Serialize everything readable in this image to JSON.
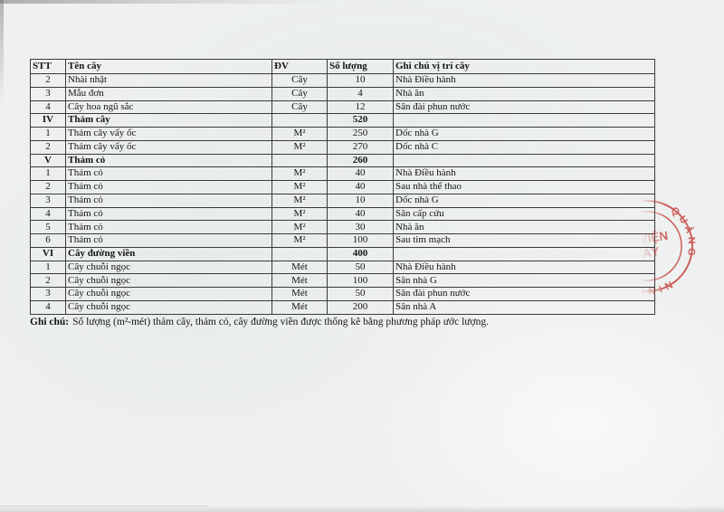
{
  "page": {
    "note_label": "Ghi chú:",
    "note_text": "Số lượng (m²-mét) thảm cây, thảm cỏ, cây đường viền được thống kê bằng phương pháp ước lượng."
  },
  "table": {
    "headers": [
      "STT",
      "Tên cây",
      "ĐV",
      "Số lượng",
      "Ghi chú vị trí cây"
    ],
    "rows": [
      {
        "stt": "2",
        "name": "Nhài nhật",
        "unit": "Cây",
        "qty": "10",
        "note": "Nhà Điều hành",
        "bold": false
      },
      {
        "stt": "3",
        "name": "Mẫu đơn",
        "unit": "Cây",
        "qty": "4",
        "note": "Nhà ăn",
        "bold": false
      },
      {
        "stt": "4",
        "name": "Cây hoa ngũ sắc",
        "unit": "Cây",
        "qty": "12",
        "note": "Sân đài phun nước",
        "bold": false
      },
      {
        "stt": "IV",
        "name": "Thảm cây",
        "unit": "",
        "qty": "520",
        "note": "",
        "bold": true
      },
      {
        "stt": "1",
        "name": "Thảm cây vẩy ốc",
        "unit": "M²",
        "qty": "250",
        "note": "Dốc nhà G",
        "bold": false
      },
      {
        "stt": "2",
        "name": "Thảm cây vẩy ốc",
        "unit": "M²",
        "qty": "270",
        "note": "Dốc nhà C",
        "bold": false
      },
      {
        "stt": "V",
        "name": "Thảm cỏ",
        "unit": "",
        "qty": "260",
        "note": "",
        "bold": true
      },
      {
        "stt": "1",
        "name": "Thảm cỏ",
        "unit": "M²",
        "qty": "40",
        "note": "Nhà Điều hành",
        "bold": false
      },
      {
        "stt": "2",
        "name": "Thảm cỏ",
        "unit": "M²",
        "qty": "40",
        "note": "Sau nhà thể thao",
        "bold": false
      },
      {
        "stt": "3",
        "name": "Thảm cỏ",
        "unit": "M²",
        "qty": "10",
        "note": "Dốc nhà G",
        "bold": false
      },
      {
        "stt": "4",
        "name": "Thảm cỏ",
        "unit": "M²",
        "qty": "40",
        "note": "Sân cấp cứu",
        "bold": false
      },
      {
        "stt": "5",
        "name": "Thảm cỏ",
        "unit": "M²",
        "qty": "30",
        "note": "Nhà ăn",
        "bold": false
      },
      {
        "stt": "6",
        "name": "Thảm cỏ",
        "unit": "M²",
        "qty": "100",
        "note": "Sau tim mạch",
        "bold": false
      },
      {
        "stt": "VI",
        "name": "Cây đường viền",
        "unit": "",
        "qty": "400",
        "note": "",
        "bold": true
      },
      {
        "stt": "1",
        "name": "Cây chuỗi ngọc",
        "unit": "Mét",
        "qty": "50",
        "note": "Nhà Điều hành",
        "bold": false
      },
      {
        "stt": "2",
        "name": "Cây chuỗi ngọc",
        "unit": "Mét",
        "qty": "100",
        "note": "Sân nhà G",
        "bold": false
      },
      {
        "stt": "3",
        "name": "Cây chuỗi ngọc",
        "unit": "Mét",
        "qty": "50",
        "note": "Sân đài phun nước",
        "bold": false
      },
      {
        "stt": "4",
        "name": "Cây chuỗi ngọc",
        "unit": "Mét",
        "qty": "200",
        "note": "Sân nhà A",
        "bold": false
      }
    ]
  },
  "stamp": {
    "center_line1": "VIỆN",
    "center_line2": "ỈÁY",
    "ring_top_fragment": "IH",
    "ring_text1": "QUẢNG",
    "ring_text2": "NINH",
    "color": "#c2423e"
  }
}
